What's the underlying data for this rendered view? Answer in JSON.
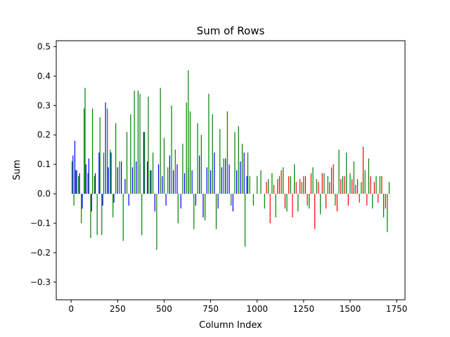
{
  "chart_data": {
    "type": "bar",
    "title": "Sum of Rows",
    "xlabel": "Column Index",
    "ylabel": "Sum",
    "xlim": [
      -80,
      1795
    ],
    "ylim": [
      -0.36,
      0.52
    ],
    "xticks": [
      0,
      250,
      500,
      750,
      1000,
      1250,
      1500,
      1750
    ],
    "yticks": [
      -0.3,
      -0.2,
      -0.1,
      0.0,
      0.1,
      0.2,
      0.3,
      0.4,
      0.5
    ],
    "xtick_labels": [
      "0",
      "250",
      "500",
      "750",
      "1000",
      "1250",
      "1500",
      "1750"
    ],
    "ytick_labels": [
      "−0.3",
      "−0.2",
      "−0.1",
      "0.0",
      "0.1",
      "0.2",
      "0.3",
      "0.4",
      "0.5"
    ],
    "grid": false,
    "colors": {
      "blue": "#0000ff",
      "green": "#008000",
      "red": "#ff0000"
    },
    "series": [
      {
        "color": "blue",
        "x": [
          10,
          20,
          30,
          45,
          60,
          80,
          95,
          110,
          130,
          150,
          170,
          185,
          200,
          215,
          230,
          250,
          270,
          290,
          310,
          330,
          350,
          370,
          390,
          410,
          430,
          450,
          470,
          490,
          510,
          530,
          550,
          570,
          590,
          610,
          630,
          650,
          670,
          690,
          710,
          730,
          750,
          770,
          790,
          810,
          830,
          850,
          870,
          890,
          910,
          930,
          945
        ],
        "values": [
          0.13,
          0.18,
          0.08,
          0.07,
          -0.05,
          0.1,
          0.12,
          -0.06,
          0.07,
          0.14,
          -0.04,
          0.31,
          0.09,
          0.14,
          -0.03,
          0.09,
          0.11,
          0.05,
          -0.04,
          0.09,
          0.11,
          0.1,
          0.21,
          0.11,
          0.08,
          -0.06,
          0.1,
          0.06,
          -0.04,
          0.13,
          0.08,
          0.1,
          -0.05,
          0.07,
          0.09,
          0.08,
          -0.04,
          0.13,
          -0.08,
          0.09,
          0.08,
          0.14,
          -0.05,
          0.09,
          0.12,
          0.1,
          -0.06,
          0.08,
          0.11,
          0.14,
          0.06
        ]
      },
      {
        "color": "green",
        "x": [
          5,
          15,
          25,
          40,
          55,
          70,
          75,
          90,
          105,
          115,
          125,
          140,
          155,
          165,
          175,
          195,
          210,
          225,
          240,
          260,
          280,
          300,
          320,
          340,
          360,
          370,
          380,
          395,
          415,
          425,
          440,
          460,
          480,
          500,
          520,
          540,
          560,
          575,
          600,
          620,
          630,
          640,
          660,
          680,
          700,
          720,
          740,
          760,
          780,
          800,
          820,
          840,
          860,
          880,
          900,
          920,
          935,
          950,
          960,
          980,
          1000,
          1020,
          1040,
          1060,
          1080,
          1100,
          1120,
          1140,
          1160,
          1180,
          1200,
          1220,
          1240,
          1260,
          1280,
          1300,
          1320,
          1340,
          1360,
          1380,
          1400,
          1420,
          1440,
          1460,
          1480,
          1500,
          1520,
          1540,
          1560,
          1580,
          1600,
          1620,
          1640,
          1660,
          1680,
          1700,
          1710
        ],
        "values": [
          0.11,
          -0.04,
          0.08,
          0.06,
          -0.1,
          0.29,
          0.36,
          0.07,
          -0.15,
          0.29,
          0.06,
          -0.14,
          0.26,
          -0.14,
          0.14,
          0.29,
          0.15,
          -0.08,
          0.24,
          0.11,
          -0.16,
          0.21,
          0.27,
          0.35,
          0.35,
          0.34,
          -0.14,
          0.21,
          0.33,
          0.08,
          0.14,
          -0.19,
          0.36,
          0.19,
          0.09,
          0.3,
          0.15,
          -0.1,
          0.17,
          0.31,
          0.42,
          0.28,
          -0.12,
          0.24,
          0.2,
          -0.09,
          0.34,
          0.27,
          -0.12,
          0.22,
          0.12,
          0.28,
          -0.04,
          0.21,
          0.23,
          0.17,
          -0.18,
          0.14,
          0.06,
          -0.04,
          0.06,
          0.08,
          -0.05,
          0.05,
          0.07,
          -0.08,
          0.06,
          0.09,
          -0.06,
          0.06,
          0.1,
          -0.06,
          0.04,
          0.06,
          -0.05,
          0.09,
          0.05,
          -0.07,
          0.07,
          0.06,
          0.09,
          -0.04,
          0.15,
          0.06,
          0.14,
          0.07,
          0.11,
          0.05,
          0.04,
          0.08,
          0.12,
          -0.05,
          0.06,
          0.06,
          -0.08,
          -0.13,
          0.04
        ]
      },
      {
        "color": "red",
        "x": [
          1050,
          1070,
          1090,
          1110,
          1130,
          1150,
          1170,
          1190,
          1210,
          1230,
          1250,
          1270,
          1290,
          1310,
          1330,
          1350,
          1370,
          1390,
          1410,
          1430,
          1450,
          1470,
          1490,
          1510,
          1530,
          1550,
          1570,
          1590,
          1610,
          1630,
          1650,
          1670,
          1690
        ],
        "values": [
          0.04,
          -0.1,
          0.03,
          0.05,
          0.08,
          -0.05,
          0.06,
          -0.08,
          0.04,
          0.05,
          0.06,
          -0.04,
          0.07,
          -0.12,
          0.04,
          0.07,
          -0.05,
          0.04,
          0.1,
          -0.06,
          0.05,
          0.06,
          -0.04,
          0.05,
          0.03,
          -0.03,
          0.16,
          -0.04,
          0.06,
          0.04,
          -0.03,
          0.06,
          -0.05
        ]
      }
    ]
  }
}
